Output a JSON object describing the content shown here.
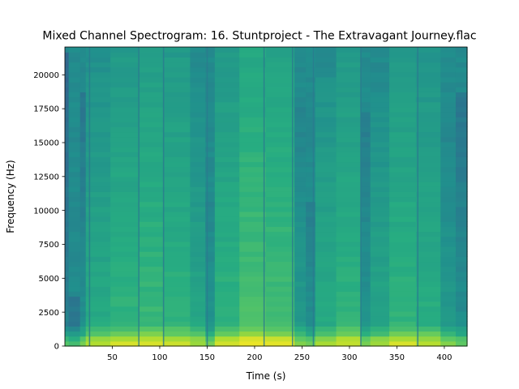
{
  "chart_data": {
    "type": "heatmap",
    "title": "Mixed Channel Spectrogram: 16. Stuntproject - The Extravagant Journey.flac",
    "xlabel": "Time (s)",
    "ylabel": "Frequency (Hz)",
    "xlim": [
      0,
      424
    ],
    "ylim": [
      0,
      22050
    ],
    "xticks": [
      50,
      100,
      150,
      200,
      250,
      300,
      350,
      400
    ],
    "yticks": [
      0,
      2500,
      5000,
      7500,
      10000,
      12500,
      15000,
      17500,
      20000
    ],
    "colormap": "viridis",
    "grid": false,
    "segments": [
      {
        "t0": 0,
        "t1": 4,
        "cutoff": 21500,
        "level": 0.45
      },
      {
        "t0": 4,
        "t1": 16,
        "cutoff": 3600,
        "level": 0.42
      },
      {
        "t0": 16,
        "t1": 22,
        "cutoff": 18500,
        "level": 0.5
      },
      {
        "t0": 22,
        "t1": 48,
        "cutoff": 22050,
        "level": 0.62
      },
      {
        "t0": 48,
        "t1": 78,
        "cutoff": 22050,
        "level": 0.66
      },
      {
        "t0": 78,
        "t1": 104,
        "cutoff": 22050,
        "level": 0.68
      },
      {
        "t0": 104,
        "t1": 132,
        "cutoff": 22050,
        "level": 0.66
      },
      {
        "t0": 132,
        "t1": 148,
        "cutoff": 22050,
        "level": 0.6
      },
      {
        "t0": 148,
        "t1": 158,
        "cutoff": 10500,
        "level": 0.52
      },
      {
        "t0": 158,
        "t1": 184,
        "cutoff": 22050,
        "level": 0.66
      },
      {
        "t0": 184,
        "t1": 212,
        "cutoff": 22050,
        "level": 0.72
      },
      {
        "t0": 212,
        "t1": 242,
        "cutoff": 22050,
        "level": 0.7
      },
      {
        "t0": 242,
        "t1": 254,
        "cutoff": 18000,
        "level": 0.55
      },
      {
        "t0": 254,
        "t1": 264,
        "cutoff": 10500,
        "level": 0.5
      },
      {
        "t0": 264,
        "t1": 286,
        "cutoff": 19500,
        "level": 0.62
      },
      {
        "t0": 286,
        "t1": 312,
        "cutoff": 22050,
        "level": 0.66
      },
      {
        "t0": 312,
        "t1": 322,
        "cutoff": 17000,
        "level": 0.52
      },
      {
        "t0": 322,
        "t1": 342,
        "cutoff": 18500,
        "level": 0.6
      },
      {
        "t0": 342,
        "t1": 370,
        "cutoff": 22050,
        "level": 0.66
      },
      {
        "t0": 370,
        "t1": 396,
        "cutoff": 22050,
        "level": 0.64
      },
      {
        "t0": 396,
        "t1": 412,
        "cutoff": 16000,
        "level": 0.55
      },
      {
        "t0": 412,
        "t1": 424,
        "cutoff": 18500,
        "level": 0.5
      }
    ],
    "dark_lines_s": [
      26,
      78,
      104,
      150,
      210,
      240,
      262,
      312,
      372
    ]
  }
}
